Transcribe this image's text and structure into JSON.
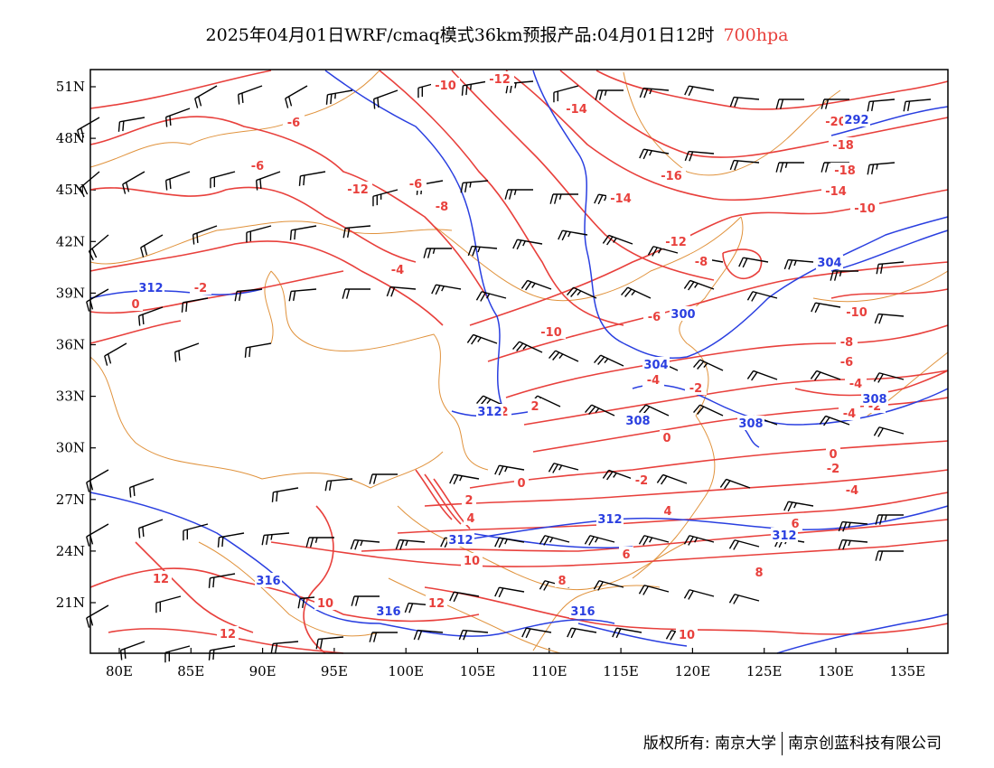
{
  "title": {
    "main": "2025年04月01日WRF/cmaq模式36km预报产品:04月01日12时",
    "level": "700hpa"
  },
  "axes": {
    "lat_labels": [
      "51N",
      "48N",
      "45N",
      "42N",
      "39N",
      "36N",
      "33N",
      "30N",
      "27N",
      "24N",
      "21N"
    ],
    "lon_labels": [
      "80E",
      "85E",
      "90E",
      "95E",
      "100E",
      "105E",
      "110E",
      "115E",
      "120E",
      "125E",
      "130E",
      "135E"
    ],
    "lat_range": [
      18,
      52
    ],
    "lon_range": [
      78,
      138
    ]
  },
  "colors": {
    "temperature": "#e8403c",
    "height": "#2a3fe0",
    "boundary": "#e0923c",
    "wind_barb": "#000000"
  },
  "temperature_labels": [
    "-12",
    "-10",
    "-14",
    "-6",
    "-20",
    "-18",
    "-6",
    "-16",
    "-18",
    "-8",
    "-6",
    "-14",
    "-14",
    "-12",
    "-10",
    "-12",
    "-4",
    "-2",
    "-8",
    "0",
    "-6",
    "-10",
    "-10",
    "-8",
    "-6",
    "-4",
    "-2",
    "-2",
    "2",
    "0",
    "-4",
    "0",
    "-2",
    "-4",
    "2",
    "4",
    "6",
    "6",
    "8",
    "10",
    "12",
    "12",
    "10",
    "12",
    "10",
    "2",
    "-4",
    "0",
    "-2",
    "4",
    "8"
  ],
  "height_labels": [
    "292",
    "312",
    "304",
    "300",
    "304",
    "312",
    "308",
    "308",
    "308",
    "312",
    "312",
    "312",
    "316",
    "316",
    "316"
  ],
  "footer": {
    "copyright": "版权所有: 南京大学",
    "company": "南京创蓝科技有限公司"
  }
}
